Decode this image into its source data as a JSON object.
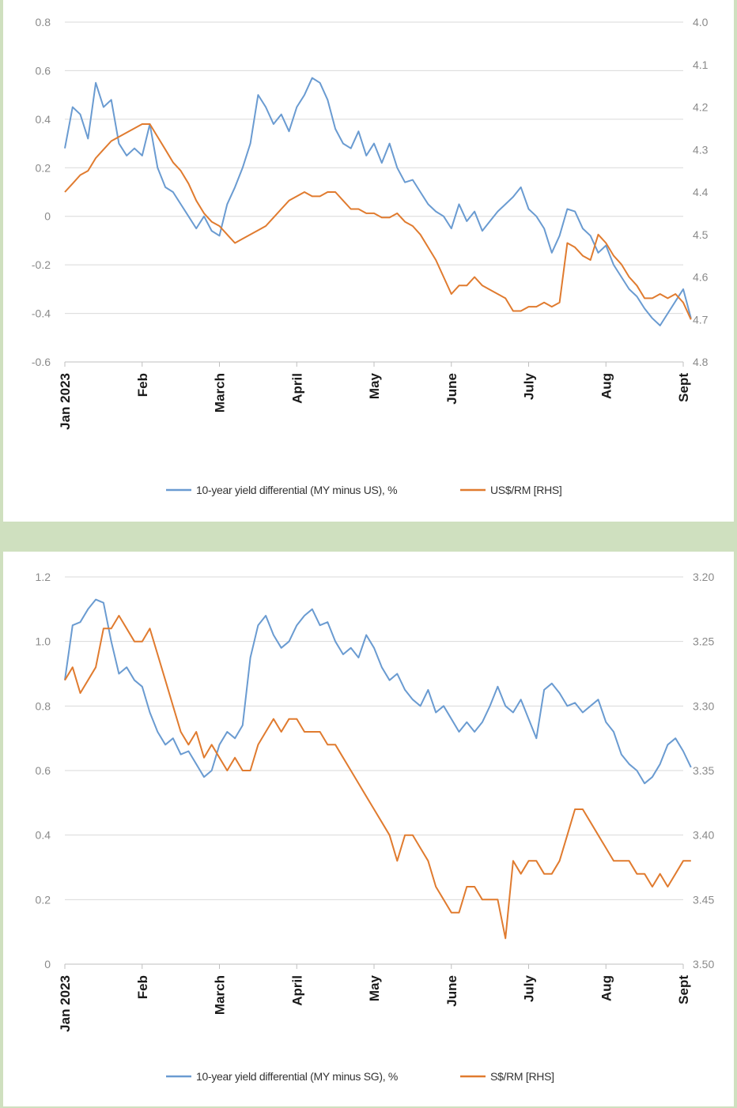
{
  "colors": {
    "blue": "#6a9bd1",
    "orange": "#e07b2f",
    "frame": "#cfe0bf"
  },
  "chart_data": [
    {
      "type": "line",
      "title": "",
      "x_months": [
        "Jan 2023",
        "Feb",
        "March",
        "April",
        "May",
        "June",
        "July",
        "Aug",
        "Sept"
      ],
      "left_axis": {
        "ticks": [
          "0.8",
          "0.6",
          "0.4",
          "0.2",
          "0",
          "-0.2",
          "-0.4",
          "-0.6"
        ],
        "ylim": [
          -0.6,
          0.8
        ]
      },
      "right_axis": {
        "ticks": [
          "4.0",
          "4.1",
          "4.2",
          "4.3",
          "4.4",
          "4.5",
          "4.6",
          "4.7",
          "4.8"
        ],
        "ylim": [
          4.8,
          4.0
        ],
        "inverted": true
      },
      "legend_position": "bottom",
      "series": [
        {
          "name": "10-year yield differential (MY minus US), %",
          "axis": "left",
          "color": "#6a9bd1",
          "x": [
            0.0,
            0.1,
            0.2,
            0.3,
            0.4,
            0.5,
            0.6,
            0.7,
            0.8,
            0.9,
            1.0,
            1.1,
            1.2,
            1.3,
            1.4,
            1.5,
            1.6,
            1.7,
            1.8,
            1.9,
            2.0,
            2.1,
            2.2,
            2.3,
            2.4,
            2.5,
            2.6,
            2.7,
            2.8,
            2.9,
            3.0,
            3.1,
            3.2,
            3.3,
            3.4,
            3.5,
            3.6,
            3.7,
            3.8,
            3.9,
            4.0,
            4.1,
            4.2,
            4.3,
            4.4,
            4.5,
            4.6,
            4.7,
            4.8,
            4.9,
            5.0,
            5.1,
            5.2,
            5.3,
            5.4,
            5.5,
            5.6,
            5.7,
            5.8,
            5.9,
            6.0,
            6.1,
            6.2,
            6.3,
            6.4,
            6.5,
            6.6,
            6.7,
            6.8,
            6.9,
            7.0,
            7.1,
            7.2,
            7.3,
            7.4,
            7.5,
            7.6,
            7.7,
            7.8,
            7.9,
            8.0,
            8.1
          ],
          "values": [
            0.28,
            0.45,
            0.42,
            0.32,
            0.55,
            0.45,
            0.48,
            0.3,
            0.25,
            0.28,
            0.25,
            0.38,
            0.2,
            0.12,
            0.1,
            0.05,
            0.0,
            -0.05,
            0.0,
            -0.06,
            -0.08,
            0.05,
            0.12,
            0.2,
            0.3,
            0.5,
            0.45,
            0.38,
            0.42,
            0.35,
            0.45,
            0.5,
            0.57,
            0.55,
            0.48,
            0.36,
            0.3,
            0.28,
            0.35,
            0.25,
            0.3,
            0.22,
            0.3,
            0.2,
            0.14,
            0.15,
            0.1,
            0.05,
            0.02,
            0.0,
            -0.05,
            0.05,
            -0.02,
            0.02,
            -0.06,
            -0.02,
            0.02,
            0.05,
            0.08,
            0.12,
            0.03,
            0.0,
            -0.05,
            -0.15,
            -0.08,
            0.03,
            0.02,
            -0.05,
            -0.08,
            -0.15,
            -0.12,
            -0.2,
            -0.25,
            -0.3,
            -0.33,
            -0.38,
            -0.42,
            -0.45,
            -0.4,
            -0.35,
            -0.3,
            -0.42
          ]
        },
        {
          "name": "US$/RM [RHS]",
          "axis": "right",
          "color": "#e07b2f",
          "x": [
            0.0,
            0.1,
            0.2,
            0.3,
            0.4,
            0.5,
            0.6,
            0.7,
            0.8,
            0.9,
            1.0,
            1.1,
            1.2,
            1.3,
            1.4,
            1.5,
            1.6,
            1.7,
            1.8,
            1.9,
            2.0,
            2.1,
            2.2,
            2.3,
            2.4,
            2.5,
            2.6,
            2.7,
            2.8,
            2.9,
            3.0,
            3.1,
            3.2,
            3.3,
            3.4,
            3.5,
            3.6,
            3.7,
            3.8,
            3.9,
            4.0,
            4.1,
            4.2,
            4.3,
            4.4,
            4.5,
            4.6,
            4.7,
            4.8,
            4.9,
            5.0,
            5.1,
            5.2,
            5.3,
            5.4,
            5.5,
            5.6,
            5.7,
            5.8,
            5.9,
            6.0,
            6.1,
            6.2,
            6.3,
            6.4,
            6.5,
            6.6,
            6.7,
            6.8,
            6.9,
            7.0,
            7.1,
            7.2,
            7.3,
            7.4,
            7.5,
            7.6,
            7.7,
            7.8,
            7.9,
            8.0,
            8.1
          ],
          "values": [
            4.4,
            4.38,
            4.36,
            4.35,
            4.32,
            4.3,
            4.28,
            4.27,
            4.26,
            4.25,
            4.24,
            4.24,
            4.27,
            4.3,
            4.33,
            4.35,
            4.38,
            4.42,
            4.45,
            4.47,
            4.48,
            4.5,
            4.52,
            4.51,
            4.5,
            4.49,
            4.48,
            4.46,
            4.44,
            4.42,
            4.41,
            4.4,
            4.41,
            4.41,
            4.4,
            4.4,
            4.42,
            4.44,
            4.44,
            4.45,
            4.45,
            4.46,
            4.46,
            4.45,
            4.47,
            4.48,
            4.5,
            4.53,
            4.56,
            4.6,
            4.64,
            4.62,
            4.62,
            4.6,
            4.62,
            4.63,
            4.64,
            4.65,
            4.68,
            4.68,
            4.67,
            4.67,
            4.66,
            4.67,
            4.66,
            4.52,
            4.53,
            4.55,
            4.56,
            4.5,
            4.52,
            4.55,
            4.57,
            4.6,
            4.62,
            4.65,
            4.65,
            4.64,
            4.65,
            4.64,
            4.66,
            4.7
          ]
        }
      ]
    },
    {
      "type": "line",
      "title": "",
      "x_months": [
        "Jan 2023",
        "Feb",
        "March",
        "April",
        "May",
        "June",
        "July",
        "Aug",
        "Sept"
      ],
      "left_axis": {
        "ticks": [
          "1.2",
          "1.0",
          "0.8",
          "0.6",
          "0.4",
          "0.2",
          "0"
        ],
        "ylim": [
          0,
          1.2
        ]
      },
      "right_axis": {
        "ticks": [
          "3.20",
          "3.25",
          "3.30",
          "3.35",
          "3.40",
          "3.45",
          "3.50"
        ],
        "ylim": [
          3.5,
          3.2
        ],
        "inverted": true
      },
      "legend_position": "bottom",
      "series": [
        {
          "name": "10-year yield differential (MY minus SG), %",
          "axis": "left",
          "color": "#6a9bd1",
          "x": [
            0.0,
            0.1,
            0.2,
            0.3,
            0.4,
            0.5,
            0.6,
            0.7,
            0.8,
            0.9,
            1.0,
            1.1,
            1.2,
            1.3,
            1.4,
            1.5,
            1.6,
            1.7,
            1.8,
            1.9,
            2.0,
            2.1,
            2.2,
            2.3,
            2.4,
            2.5,
            2.6,
            2.7,
            2.8,
            2.9,
            3.0,
            3.1,
            3.2,
            3.3,
            3.4,
            3.5,
            3.6,
            3.7,
            3.8,
            3.9,
            4.0,
            4.1,
            4.2,
            4.3,
            4.4,
            4.5,
            4.6,
            4.7,
            4.8,
            4.9,
            5.0,
            5.1,
            5.2,
            5.3,
            5.4,
            5.5,
            5.6,
            5.7,
            5.8,
            5.9,
            6.0,
            6.1,
            6.2,
            6.3,
            6.4,
            6.5,
            6.6,
            6.7,
            6.8,
            6.9,
            7.0,
            7.1,
            7.2,
            7.3,
            7.4,
            7.5,
            7.6,
            7.7,
            7.8,
            7.9,
            8.0,
            8.1
          ],
          "values": [
            0.88,
            1.05,
            1.06,
            1.1,
            1.13,
            1.12,
            1.0,
            0.9,
            0.92,
            0.88,
            0.86,
            0.78,
            0.72,
            0.68,
            0.7,
            0.65,
            0.66,
            0.62,
            0.58,
            0.6,
            0.68,
            0.72,
            0.7,
            0.74,
            0.95,
            1.05,
            1.08,
            1.02,
            0.98,
            1.0,
            1.05,
            1.08,
            1.1,
            1.05,
            1.06,
            1.0,
            0.96,
            0.98,
            0.95,
            1.02,
            0.98,
            0.92,
            0.88,
            0.9,
            0.85,
            0.82,
            0.8,
            0.85,
            0.78,
            0.8,
            0.76,
            0.72,
            0.75,
            0.72,
            0.75,
            0.8,
            0.86,
            0.8,
            0.78,
            0.82,
            0.76,
            0.7,
            0.85,
            0.87,
            0.84,
            0.8,
            0.81,
            0.78,
            0.8,
            0.82,
            0.75,
            0.72,
            0.65,
            0.62,
            0.6,
            0.56,
            0.58,
            0.62,
            0.68,
            0.7,
            0.66,
            0.61
          ]
        },
        {
          "name": "S$/RM [RHS]",
          "axis": "right",
          "color": "#e07b2f",
          "x": [
            0.0,
            0.1,
            0.2,
            0.3,
            0.4,
            0.5,
            0.6,
            0.7,
            0.8,
            0.9,
            1.0,
            1.1,
            1.2,
            1.3,
            1.4,
            1.5,
            1.6,
            1.7,
            1.8,
            1.9,
            2.0,
            2.1,
            2.2,
            2.3,
            2.4,
            2.5,
            2.6,
            2.7,
            2.8,
            2.9,
            3.0,
            3.1,
            3.2,
            3.3,
            3.4,
            3.5,
            3.6,
            3.7,
            3.8,
            3.9,
            4.0,
            4.1,
            4.2,
            4.3,
            4.4,
            4.5,
            4.6,
            4.7,
            4.8,
            4.9,
            5.0,
            5.1,
            5.2,
            5.3,
            5.4,
            5.5,
            5.6,
            5.7,
            5.8,
            5.9,
            6.0,
            6.1,
            6.2,
            6.3,
            6.4,
            6.5,
            6.6,
            6.7,
            6.8,
            6.9,
            7.0,
            7.1,
            7.2,
            7.3,
            7.4,
            7.5,
            7.6,
            7.7,
            7.8,
            7.9,
            8.0,
            8.1
          ],
          "values": [
            3.28,
            3.27,
            3.29,
            3.28,
            3.27,
            3.24,
            3.24,
            3.23,
            3.24,
            3.25,
            3.25,
            3.24,
            3.26,
            3.28,
            3.3,
            3.32,
            3.33,
            3.32,
            3.34,
            3.33,
            3.34,
            3.35,
            3.34,
            3.35,
            3.35,
            3.33,
            3.32,
            3.31,
            3.32,
            3.31,
            3.31,
            3.32,
            3.32,
            3.32,
            3.33,
            3.33,
            3.34,
            3.35,
            3.36,
            3.37,
            3.38,
            3.39,
            3.4,
            3.42,
            3.4,
            3.4,
            3.41,
            3.42,
            3.44,
            3.45,
            3.46,
            3.46,
            3.44,
            3.44,
            3.45,
            3.45,
            3.45,
            3.48,
            3.42,
            3.43,
            3.42,
            3.42,
            3.43,
            3.43,
            3.42,
            3.4,
            3.38,
            3.38,
            3.39,
            3.4,
            3.41,
            3.42,
            3.42,
            3.42,
            3.43,
            3.43,
            3.44,
            3.43,
            3.44,
            3.43,
            3.42,
            3.42
          ]
        }
      ]
    }
  ]
}
